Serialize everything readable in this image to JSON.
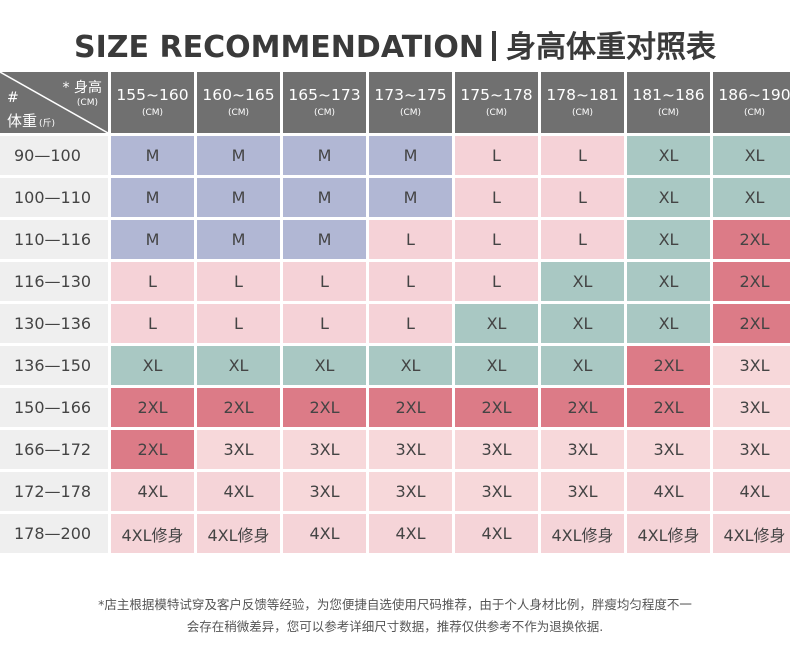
{
  "title": {
    "latin": "SIZE RECOMMENDATION",
    "chinese": "身高体重对照表"
  },
  "corner": {
    "height_label": "* 身高",
    "height_unit": "(CM)",
    "hash": "#",
    "weight_label": "体重",
    "weight_unit": "(斤)"
  },
  "heights": [
    {
      "range": "155~160",
      "unit": "(CM)"
    },
    {
      "range": "160~165",
      "unit": "(CM)"
    },
    {
      "range": "165~173",
      "unit": "(CM)"
    },
    {
      "range": "173~175",
      "unit": "(CM)"
    },
    {
      "range": "175~178",
      "unit": "(CM)"
    },
    {
      "range": "178~181",
      "unit": "(CM)"
    },
    {
      "range": "181~186",
      "unit": "(CM)"
    },
    {
      "range": "186~190",
      "unit": "(CM)"
    }
  ],
  "rows": [
    {
      "weight": "90—100",
      "sizes": [
        "M",
        "M",
        "M",
        "M",
        "L",
        "L",
        "XL",
        "XL"
      ]
    },
    {
      "weight": "100—110",
      "sizes": [
        "M",
        "M",
        "M",
        "M",
        "L",
        "L",
        "XL",
        "XL"
      ]
    },
    {
      "weight": "110—116",
      "sizes": [
        "M",
        "M",
        "M",
        "L",
        "L",
        "L",
        "XL",
        "2XL"
      ]
    },
    {
      "weight": "116—130",
      "sizes": [
        "L",
        "L",
        "L",
        "L",
        "L",
        "XL",
        "XL",
        "2XL"
      ]
    },
    {
      "weight": "130—136",
      "sizes": [
        "L",
        "L",
        "L",
        "L",
        "XL",
        "XL",
        "XL",
        "2XL"
      ]
    },
    {
      "weight": "136—150",
      "sizes": [
        "XL",
        "XL",
        "XL",
        "XL",
        "XL",
        "XL",
        "2XL",
        "3XL"
      ]
    },
    {
      "weight": "150—166",
      "sizes": [
        "2XL",
        "2XL",
        "2XL",
        "2XL",
        "2XL",
        "2XL",
        "2XL",
        "3XL"
      ]
    },
    {
      "weight": "166—172",
      "sizes": [
        "2XL",
        "3XL",
        "3XL",
        "3XL",
        "3XL",
        "3XL",
        "3XL",
        "3XL"
      ]
    },
    {
      "weight": "172—178",
      "sizes": [
        "4XL",
        "4XL",
        "3XL",
        "3XL",
        "3XL",
        "3XL",
        "4XL",
        "4XL"
      ]
    },
    {
      "weight": "178—200",
      "sizes": [
        "4XL修身",
        "4XL修身",
        "4XL",
        "4XL",
        "4XL",
        "4XL修身",
        "4XL修身",
        "4XL修身"
      ]
    }
  ],
  "colors": {
    "M": "#b1b7d4",
    "L": "#f5d2d7",
    "XL": "#a9c8c3",
    "2XL": "#dc7b87",
    "3XL": "#f7d8da",
    "4XL": "#f5d4d8",
    "header": "#707070",
    "weight_col": "#efefef"
  },
  "footnote": [
    "*店主根据模特试穿及客户反馈等经验，为您便捷自选使用尺码推荐，由于个人身材比例，胖瘦均匀程度不一",
    "会存在稍微差异，您可以参考详细尺寸数据，推荐仅供参考不作为退换依据."
  ]
}
